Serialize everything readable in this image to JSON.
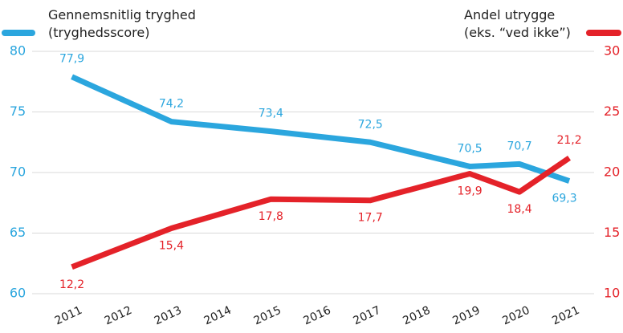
{
  "chart_data": {
    "type": "line",
    "x": [
      2011,
      2013,
      2015,
      2017,
      2019,
      2020,
      2021
    ],
    "xlim": [
      2010.2,
      2021.5
    ],
    "xticks": [
      2011,
      2012,
      2013,
      2014,
      2015,
      2016,
      2017,
      2018,
      2019,
      2020,
      2021
    ],
    "ylim": [
      60,
      80
    ],
    "yticks": [
      60,
      65,
      70,
      75,
      80
    ],
    "y2lim": [
      10,
      30
    ],
    "y2ticks": [
      10,
      15,
      20,
      25,
      30
    ],
    "grid": true,
    "series": [
      {
        "name": "Gennemsnitlig tryghed\n(tryghedsscore)",
        "color": "#2ba6de",
        "values": [
          77.9,
          74.2,
          73.4,
          72.5,
          70.5,
          70.7,
          69.3
        ],
        "value_labels": [
          "77,9",
          "74,2",
          "73,4",
          "72,5",
          "70,5",
          "70,7",
          "69,3"
        ]
      },
      {
        "name": "Andel utrygge\n(eks. “ved ikke”)",
        "color": "#e42229",
        "axis": "y2",
        "values": [
          12.2,
          15.4,
          17.8,
          17.7,
          19.9,
          18.4,
          21.2
        ],
        "value_labels": [
          "12,2",
          "15,4",
          "17,8",
          "17,7",
          "19,9",
          "18,4",
          "21,2"
        ]
      }
    ]
  }
}
